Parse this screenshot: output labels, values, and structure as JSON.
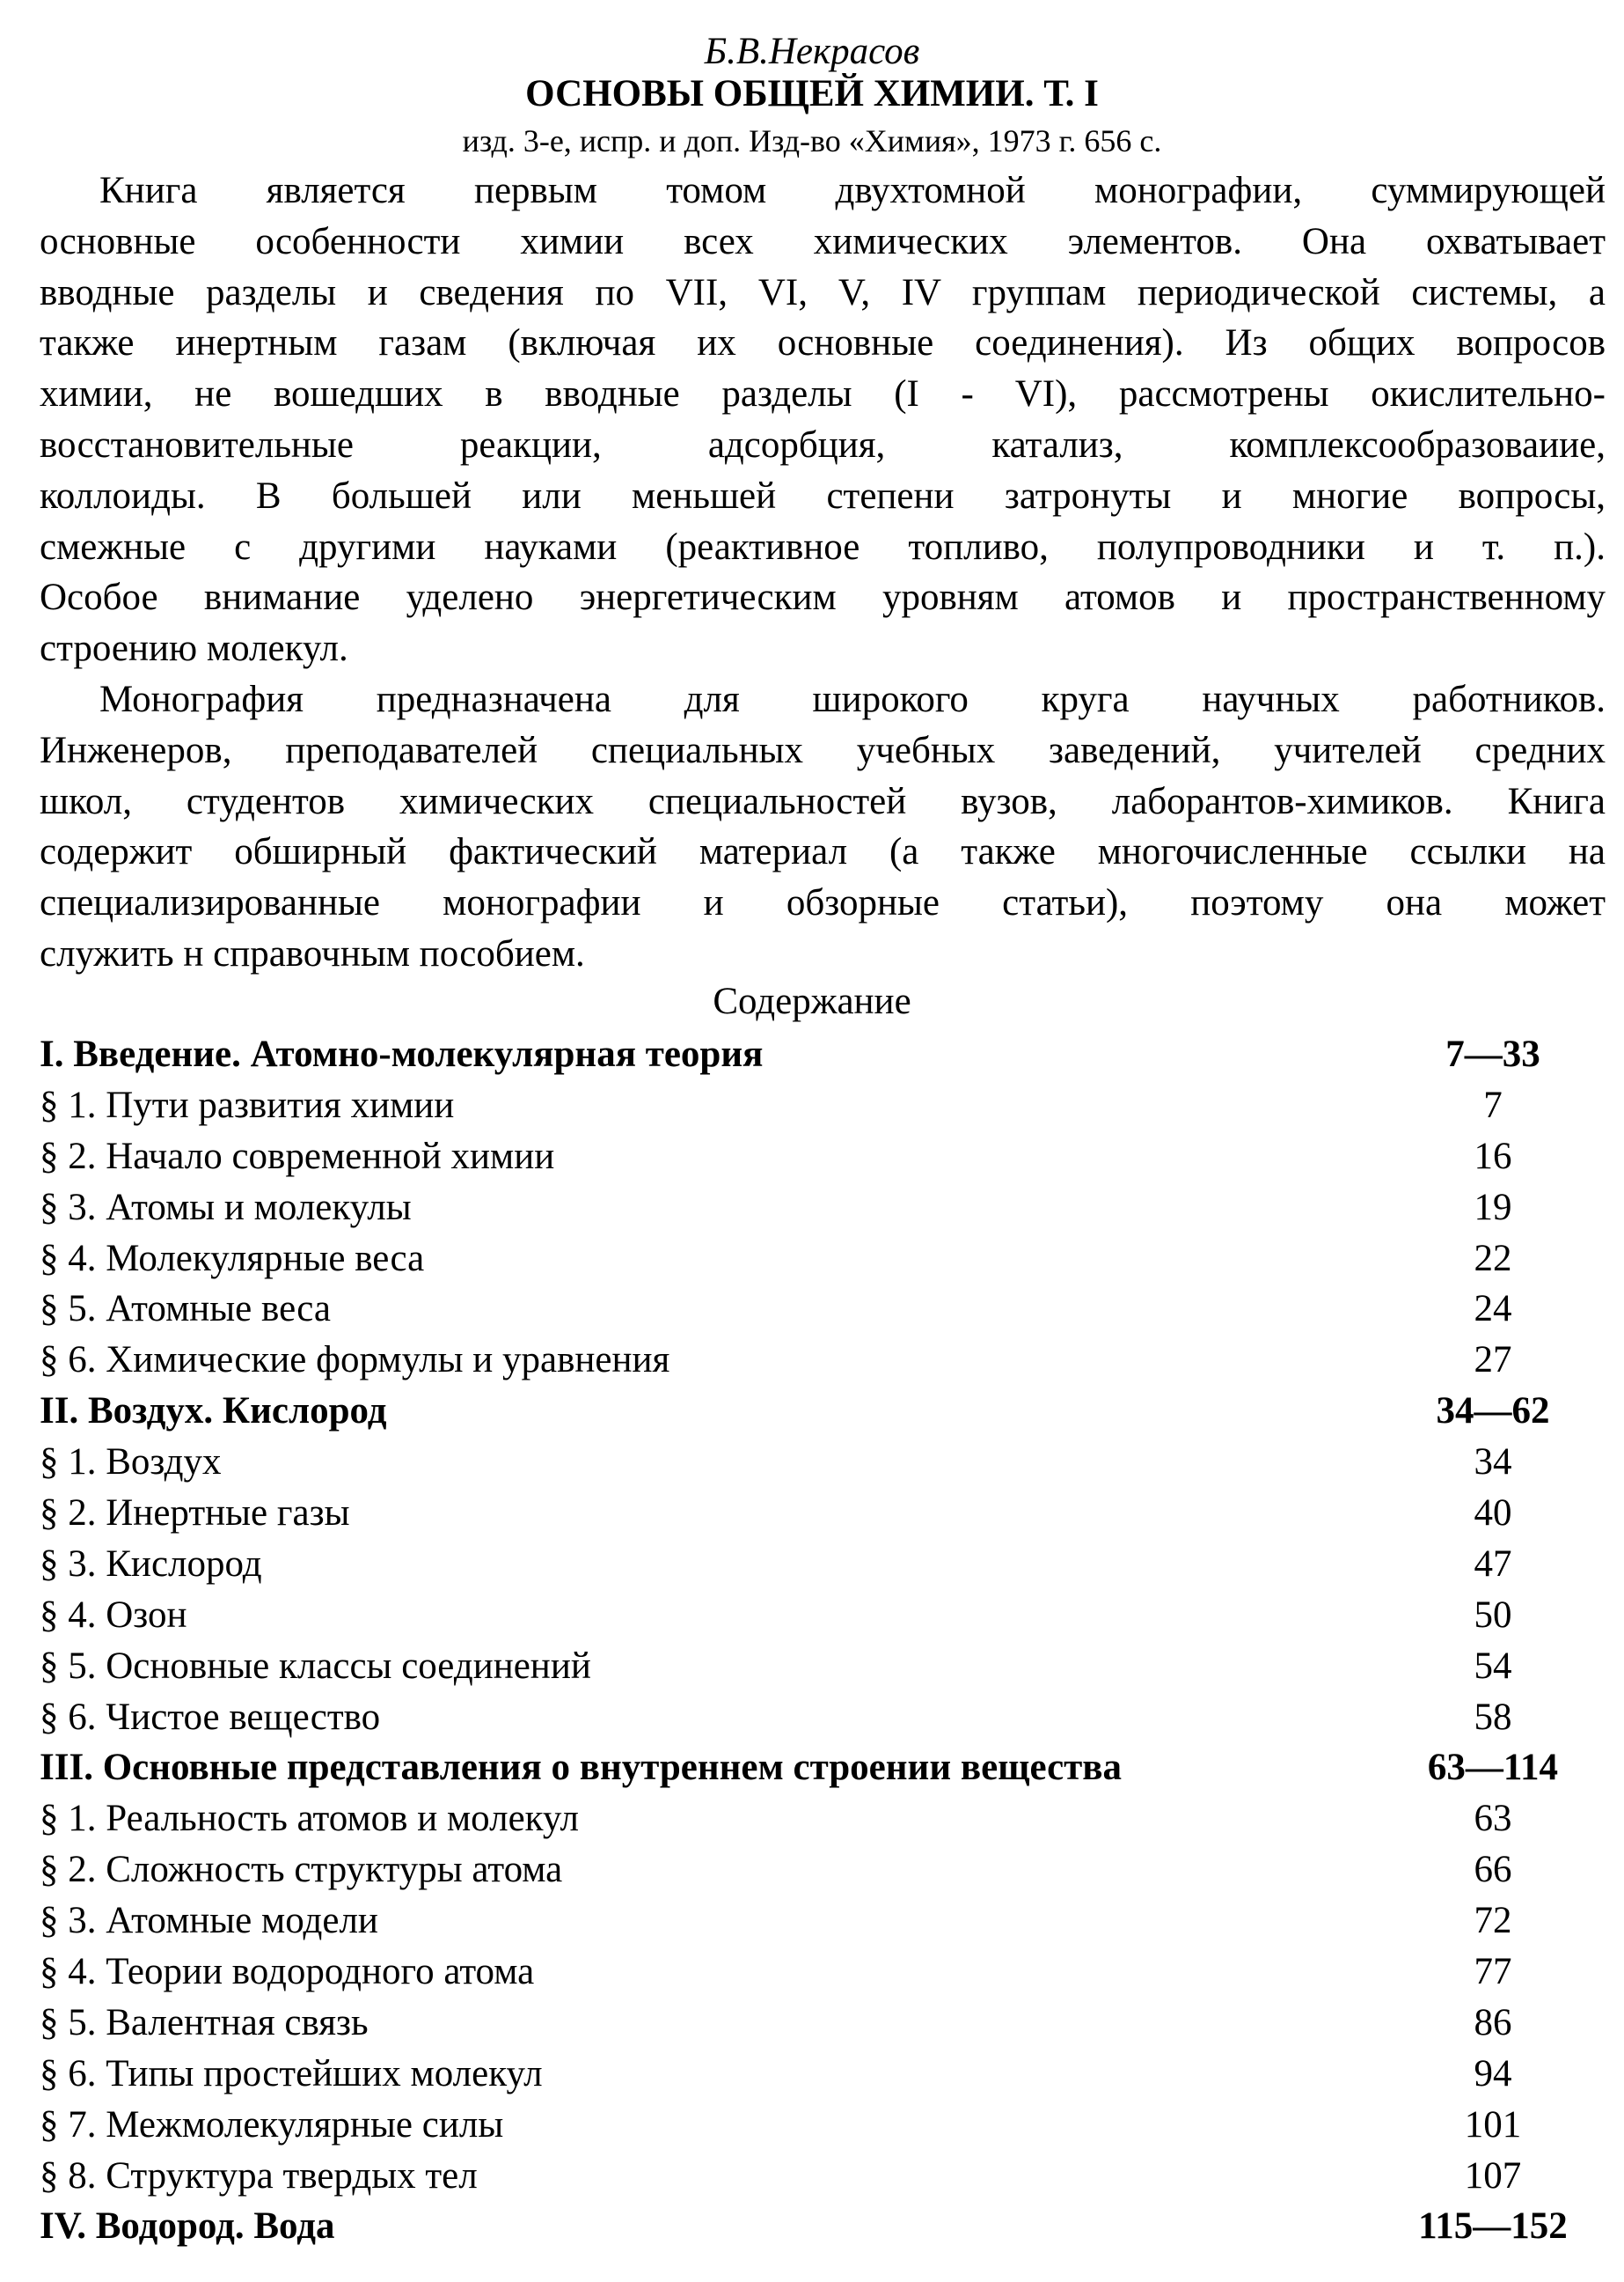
{
  "header": {
    "author": "Б.В.Некрасов",
    "title": "ОСНОВЫ ОБЩЕЙ ХИМИИ. Т. I",
    "subtitle": "изд. 3-е, испр. и доп. Изд-во «Химия», 1973 г. 656 с."
  },
  "paragraphs": [
    [
      "Книга является первым томом двухтомной монографии, суммирующей",
      "основные особенности химии всех химических элементов. Она охватывает",
      "вводные разделы и сведения по VII, VI, V, IV группам периодической системы, а",
      "также инертным газам (включая их основные соединения). Из общих вопросов",
      "химии, не вошедших в вводные разделы (I - VI), рассмотрены окислительно-",
      "восстановительные реакции, адсорбция, катализ, комплексообразоваиие,",
      "коллоиды. В большей или меньшей степени затронуты и многие вопросы,",
      "смежные с другими науками (реактивное топливо, полупроводники и т. п.).",
      "Особое внимание уделено энергетическим уровням атомов и пространственному",
      "строению молекул."
    ],
    [
      "Монография предназначена для широкого круга научных работников.",
      "Инженеров, преподавателей специальных учебных заведений, учителей средних",
      "школ, студентов химических специальностей вузов, лаборантов-химиков. Книга",
      "содержит обширный фактический материал (а также многочисленные ссылки на",
      "специализированные монографии и обзорные статьи), поэтому она может",
      "служить н справочным пособием."
    ]
  ],
  "toc": {
    "heading": "Содержание",
    "entries": [
      {
        "title": "I. Введение. Атомно-молекулярная теория",
        "pages": "7—33",
        "chapter": true
      },
      {
        "title": "§ 1. Пути развития химии",
        "pages": "7"
      },
      {
        "title": "§ 2. Начало современной химии",
        "pages": "16"
      },
      {
        "title": "§ 3. Атомы и молекулы",
        "pages": "19"
      },
      {
        "title": "§ 4. Молекулярные веса",
        "pages": "22"
      },
      {
        "title": "§ 5. Атомные веса",
        "pages": "24"
      },
      {
        "title": "§ 6. Химические формулы и уравнения",
        "pages": "27"
      },
      {
        "title": "II. Воздух. Кислород",
        "pages": "34—62",
        "chapter": true
      },
      {
        "title": "§ 1. Воздух",
        "pages": "34"
      },
      {
        "title": "§ 2. Инертные газы",
        "pages": "40"
      },
      {
        "title": "§ 3. Кислород",
        "pages": "47"
      },
      {
        "title": "§ 4. Озон",
        "pages": "50"
      },
      {
        "title": "§ 5. Основные классы соединений",
        "pages": "54"
      },
      {
        "title": "§ 6. Чистое вещество",
        "pages": "58"
      },
      {
        "title": "III. Основные представления о внутреннем строении вещества",
        "pages": "63—114",
        "chapter": true
      },
      {
        "title": "§ 1. Реальность атомов и молекул",
        "pages": "63"
      },
      {
        "title": "§ 2. Сложность структуры атома",
        "pages": "66"
      },
      {
        "title": "§ 3. Атомные модели",
        "pages": "72"
      },
      {
        "title": "§ 4. Теории водородного атома",
        "pages": "77"
      },
      {
        "title": "§ 5. Валентная связь",
        "pages": "86"
      },
      {
        "title": "§ 6. Типы простейших молекул",
        "pages": "94"
      },
      {
        "title": "§ 7. Межмолекулярные силы",
        "pages": "101"
      },
      {
        "title": "§ 8. Структура твердых тел",
        "pages": "107"
      },
      {
        "title": "IV. Водород. Вода",
        "pages": "115—152",
        "chapter": true
      }
    ]
  }
}
